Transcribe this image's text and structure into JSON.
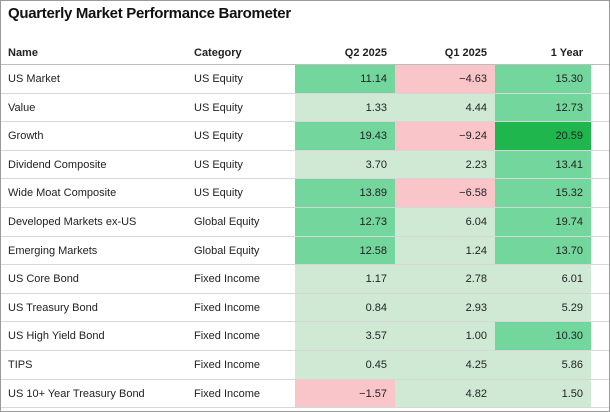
{
  "title": "Quarterly Market Performance Barometer",
  "table": {
    "headers": [
      "Name",
      "Category",
      "Q2 2025",
      "Q1 2025",
      "1 Year"
    ],
    "rows": [
      [
        "US Market",
        "US Equity",
        "11.14",
        "−4.63",
        "15.30"
      ],
      [
        "Value",
        "US Equity",
        "1.33",
        "4.44",
        "12.73"
      ],
      [
        "Growth",
        "US Equity",
        "19.43",
        "−9.24",
        "20.59"
      ],
      [
        "Dividend Composite",
        "US Equity",
        "3.70",
        "2.23",
        "13.41"
      ],
      [
        "Wide Moat Composite",
        "US Equity",
        "13.89",
        "−6.58",
        "15.32"
      ],
      [
        "Developed Markets ex-US",
        "Global Equity",
        "12.73",
        "6.04",
        "19.74"
      ],
      [
        "Emerging Markets",
        "Global Equity",
        "12.58",
        "1.24",
        "13.70"
      ],
      [
        "US Core Bond",
        "Fixed Income",
        "1.17",
        "2.78",
        "6.01"
      ],
      [
        "US Treasury Bond",
        "Fixed Income",
        "0.84",
        "2.93",
        "5.29"
      ],
      [
        "US High Yield Bond",
        "Fixed Income",
        "3.57",
        "1.00",
        "10.30"
      ],
      [
        "TIPS",
        "Fixed Income",
        "0.45",
        "4.25",
        "5.86"
      ],
      [
        "US 10+ Year Treasury Bond",
        "Fixed Income",
        "−1.57",
        "4.82",
        "1.50"
      ]
    ],
    "cell_colors": [
      [
        "#73d69d",
        "#f9c5c9",
        "#73d69d"
      ],
      [
        "#cfe9d5",
        "#cfe9d5",
        "#73d69d"
      ],
      [
        "#73d69d",
        "#f9c5c9",
        "#20b64e"
      ],
      [
        "#cfe9d5",
        "#cfe9d5",
        "#73d69d"
      ],
      [
        "#73d69d",
        "#f9c5c9",
        "#73d69d"
      ],
      [
        "#73d69d",
        "#cfe9d5",
        "#73d69d"
      ],
      [
        "#73d69d",
        "#cfe9d5",
        "#73d69d"
      ],
      [
        "#cfe9d5",
        "#cfe9d5",
        "#cfe9d5"
      ],
      [
        "#cfe9d5",
        "#cfe9d5",
        "#cfe9d5"
      ],
      [
        "#cfe9d5",
        "#cfe9d5",
        "#73d69d"
      ],
      [
        "#cfe9d5",
        "#cfe9d5",
        "#cfe9d5"
      ],
      [
        "#f9c5c9",
        "#cfe9d5",
        "#cfe9d5"
      ]
    ]
  }
}
